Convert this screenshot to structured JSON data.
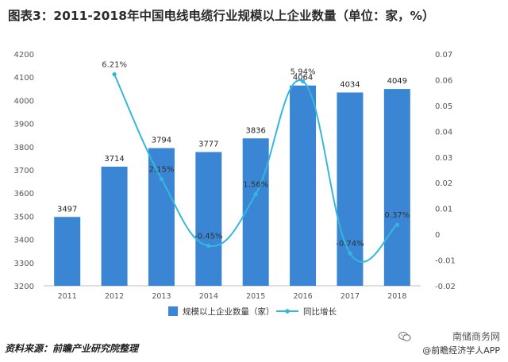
{
  "title": "图表3：2011-2018年中国电线电缆行业规模以上企业数量（单位：家，%）",
  "source": "资料来源：前瞻产业研究院整理",
  "brand": {
    "name": "南储商务网",
    "app": "@前瞻经济学人APP"
  },
  "chart_data": {
    "type": "bar",
    "categories": [
      "2011",
      "2012",
      "2013",
      "2014",
      "2015",
      "2016",
      "2017",
      "2018"
    ],
    "series": [
      {
        "name": "规模以上企业数量（家）",
        "type": "bar",
        "axis": "left",
        "values": [
          3497,
          3714,
          3794,
          3777,
          3836,
          4064,
          4034,
          4049
        ],
        "labels": [
          "3497",
          "3714",
          "3794",
          "3777",
          "3836",
          "4064",
          "4034",
          "4049"
        ],
        "color": "#3a86d4"
      },
      {
        "name": "同比增长",
        "type": "line",
        "axis": "right",
        "values": [
          null,
          0.0621,
          0.0215,
          -0.0045,
          0.0156,
          0.0594,
          -0.0074,
          0.0037
        ],
        "labels": [
          "",
          "6.21%",
          "2.15%",
          "-0.45%",
          "1.56%",
          "5.94%",
          "-0.74%",
          "0.37%"
        ],
        "color": "#35b7dc"
      }
    ],
    "y_left": {
      "min": 3200,
      "max": 4200,
      "ticks": [
        "3200",
        "3300",
        "3400",
        "3500",
        "3600",
        "3700",
        "3800",
        "3900",
        "4000",
        "4100",
        "4200"
      ]
    },
    "y_right": {
      "min": -0.02,
      "max": 0.07,
      "ticks": [
        "-0.02",
        "-0.01",
        "0",
        "0.01",
        "0.02",
        "0.03",
        "0.04",
        "0.05",
        "0.06",
        "0.07"
      ]
    },
    "legend_position": "bottom",
    "grid": false,
    "line_smooth": true
  }
}
